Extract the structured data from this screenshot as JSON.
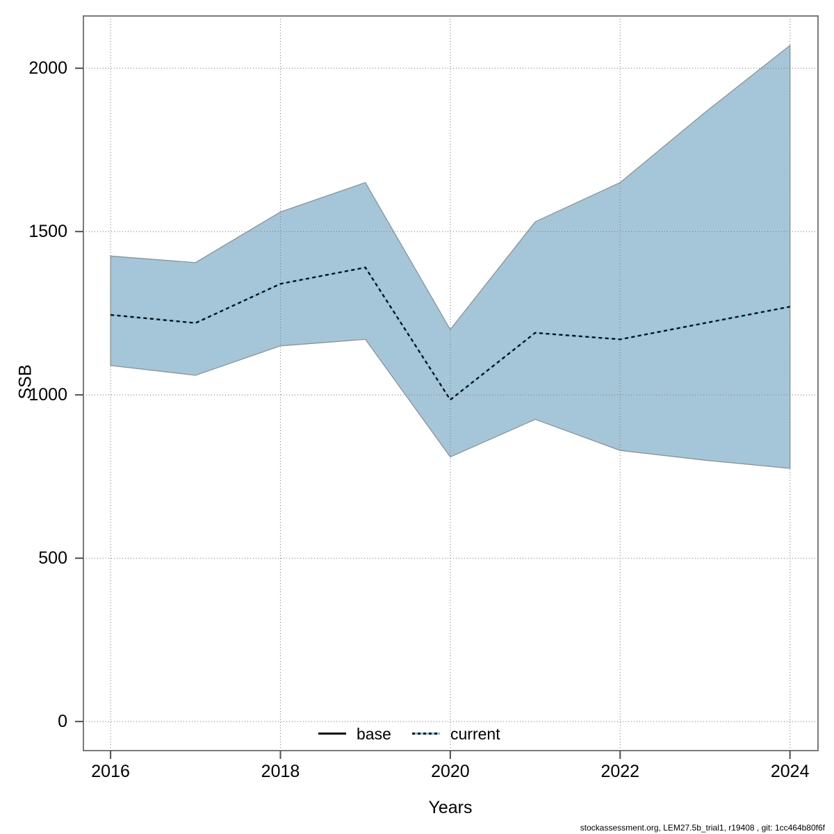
{
  "footer": "stockassessment.org, LEM27.5b_trial1, r19408 , git: 1cc464b80f6f",
  "axes": {
    "x_label": "Years",
    "y_label": "SSB",
    "x_ticks": [
      2016,
      2018,
      2020,
      2022,
      2024
    ],
    "y_ticks": [
      0,
      500,
      1000,
      1500,
      2000
    ]
  },
  "legend": {
    "base_label": "base",
    "current_label": "current"
  },
  "colors": {
    "band_fill": "#a4c6d8",
    "band_border": "#8a9499",
    "grid": "#7d7d7d",
    "frame": "#7a7a7a",
    "tick": "#4d4d4d",
    "current_dash": "#0d0d0d",
    "current_underlay": "#85c2e2",
    "base_line": "#0d0d0d"
  },
  "chart_data": {
    "type": "area",
    "title": "",
    "xlabel": "Years",
    "ylabel": "SSB",
    "x": [
      2016,
      2017,
      2018,
      2019,
      2020,
      2021,
      2022,
      2023,
      2024
    ],
    "series": [
      {
        "name": "current",
        "style": "dotted",
        "values": [
          1245,
          1220,
          1340,
          1390,
          985,
          1190,
          1170,
          1220,
          1270
        ]
      },
      {
        "name": "current_lower_ci",
        "style": "band-edge",
        "values": [
          1090,
          1060,
          1150,
          1170,
          810,
          925,
          830,
          800,
          775
        ]
      },
      {
        "name": "current_upper_ci",
        "style": "band-edge",
        "values": [
          1425,
          1405,
          1560,
          1650,
          1200,
          1530,
          1650,
          1865,
          2070
        ]
      }
    ],
    "xlim": [
      2015.68,
      2024.33
    ],
    "ylim": [
      -89,
      2160
    ],
    "grid": true,
    "grid_style": "dotted",
    "legend_entries": [
      "base",
      "current"
    ],
    "legend_position": "bottom-center"
  }
}
